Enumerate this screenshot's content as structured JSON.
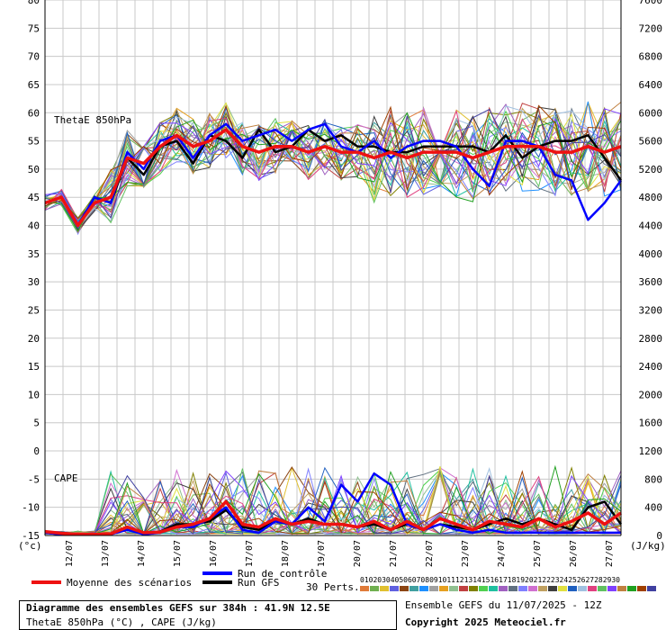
{
  "chart_data": {
    "type": "line",
    "left_axis": {
      "unit": "(°c)",
      "min": -15,
      "max": 80,
      "step": 5
    },
    "right_axis": {
      "unit": "(J/kg)",
      "min": 0,
      "max": 7600,
      "step": 400
    },
    "grid": true,
    "dates": [
      "12/07",
      "13/07",
      "14/07",
      "15/07",
      "16/07",
      "17/07",
      "18/07",
      "19/07",
      "20/07",
      "21/07",
      "22/07",
      "23/07",
      "24/07",
      "25/07",
      "26/07",
      "27/07"
    ],
    "labels": {
      "thetae": "ThetaE 850hPa",
      "cape": "CAPE"
    },
    "series": [
      {
        "name": "Moyenne des scénarios",
        "color": "#ee1111",
        "thetae": [
          44,
          45,
          40,
          44,
          45,
          52,
          51,
          54,
          56,
          54,
          55,
          57,
          54,
          53,
          54,
          54,
          53,
          54,
          53,
          53,
          52,
          53,
          52,
          53,
          53,
          53,
          52,
          53,
          54,
          54,
          54,
          53,
          53,
          54,
          53,
          54
        ],
        "cape": [
          -14.3,
          -14.6,
          -14.8,
          -14.8,
          -14.7,
          -13.5,
          -14.5,
          -14.4,
          -13.5,
          -13.0,
          -12.0,
          -9.0,
          -13.0,
          -13.5,
          -12.0,
          -13.0,
          -12.5,
          -13.0,
          -13.0,
          -13.5,
          -12.5,
          -14.0,
          -12.5,
          -14.0,
          -12.0,
          -13.0,
          -14.0,
          -12.5,
          -13.0,
          -13.5,
          -12.0,
          -13.5,
          -12.5,
          -11.0,
          -13.0,
          -11.0
        ]
      },
      {
        "name": "Run de contrôle",
        "color": "#0000ff",
        "thetae": [
          44,
          45,
          40,
          45,
          44,
          53,
          50,
          55,
          56,
          52,
          56,
          58,
          55,
          56,
          57,
          55,
          57,
          58,
          54,
          53,
          55,
          52,
          54,
          55,
          55,
          54,
          50,
          47,
          55,
          55,
          54,
          49,
          48,
          41,
          44,
          48
        ],
        "cape": [
          -14.5,
          -14.8,
          -14.8,
          -14.8,
          -14.8,
          -14.0,
          -14.8,
          -14.5,
          -13.5,
          -13.5,
          -12.0,
          -10.0,
          -14.0,
          -14.5,
          -12.5,
          -13.0,
          -10.0,
          -12.5,
          -6.0,
          -9.0,
          -4.0,
          -6.0,
          -13.0,
          -14.0,
          -13.0,
          -14.0,
          -14.5,
          -14.0,
          -14.5,
          -14.5,
          -14.5,
          -14.5,
          -14.5,
          -14.5,
          -14.5,
          -14.5
        ]
      },
      {
        "name": "Run GFS",
        "color": "#000000",
        "thetae": [
          44,
          45,
          40,
          45,
          44,
          52,
          49,
          54,
          55,
          51,
          56,
          55,
          52,
          57,
          53,
          54,
          57,
          55,
          56,
          54,
          54,
          53,
          53,
          54,
          54,
          54,
          54,
          53,
          56,
          52,
          54,
          55,
          55,
          56,
          52,
          48
        ],
        "cape": [
          -14.5,
          -14.8,
          -14.8,
          -14.8,
          -14.8,
          -13.5,
          -14.5,
          -14.3,
          -13.0,
          -13.0,
          -12.5,
          -10.5,
          -13.5,
          -14.0,
          -12.5,
          -13.0,
          -12.0,
          -13.0,
          -13.0,
          -13.5,
          -13.0,
          -14.0,
          -13.0,
          -14.0,
          -13.0,
          -13.5,
          -14.0,
          -13.0,
          -12.0,
          -13.0,
          -12.0,
          -13.0,
          -14.0,
          -10.0,
          -9.0,
          -13.0
        ]
      }
    ],
    "perturbations": {
      "label": "30 Perts.",
      "count": 30,
      "numbers": "010203040506070809101112131415161718192021222324252627282930",
      "colors": [
        "#e07b39",
        "#70b050",
        "#e0c030",
        "#6060e0",
        "#8b4513",
        "#40a0a0",
        "#1e90ff",
        "#a0a0a0",
        "#e6a020",
        "#90c090",
        "#c04040",
        "#808000",
        "#50d050",
        "#20c0a0",
        "#a060c0",
        "#607080",
        "#8080ff",
        "#d070d0",
        "#c0a060",
        "#404040",
        "#e0e040",
        "#2060c0",
        "#a0c0e0",
        "#e04080",
        "#60c060",
        "#8040ff",
        "#c08040",
        "#20a020",
        "#a04000",
        "#4040a0"
      ]
    }
  },
  "legend": {
    "mean": "Moyenne des scénarios",
    "control": "Run de contrôle",
    "gfs": "Run GFS",
    "perts": "30 Perts."
  },
  "footer": {
    "title": "Diagramme des ensembles GEFS sur 384h : 41.9N 12.5E",
    "subtitle": "ThetaE 850hPa (°C) , CAPE (J/kg)",
    "run": "Ensemble GEFS du 11/07/2025 - 12Z",
    "copyright": "Copyright 2025 Meteociel.fr"
  }
}
